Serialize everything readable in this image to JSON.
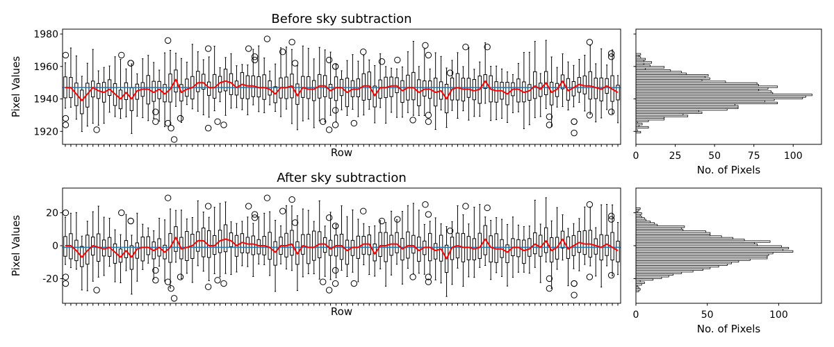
{
  "chart_data": [
    {
      "type": "box",
      "title": "Before sky subtraction",
      "xlabel": "Row",
      "ylabel": "Pixel Values",
      "ylim": [
        1912,
        1983
      ],
      "yticks": [
        1920,
        1940,
        1960,
        1980
      ],
      "n_rows": 101,
      "colors": {
        "box": "#000000",
        "median": "#1f77b4",
        "trend": "#ff0000",
        "reference": "#1f77b4"
      },
      "reference_line": 1947,
      "trend": [
        1947,
        1947,
        1943,
        1939,
        1943,
        1947,
        1945,
        1944,
        1946,
        1943,
        1940,
        1944,
        1940,
        1945,
        1946,
        1946,
        1944,
        1946,
        1943,
        1946,
        1952,
        1944,
        1946,
        1947,
        1950,
        1950,
        1947,
        1947,
        1950,
        1951,
        1950,
        1947,
        1949,
        1948,
        1948,
        1947,
        1947,
        1946,
        1943,
        1947,
        1947,
        1948,
        1942,
        1947,
        1946,
        1946,
        1948,
        1948,
        1945,
        1947,
        1947,
        1944,
        1946,
        1946,
        1948,
        1948,
        1942,
        1947,
        1947,
        1948,
        1948,
        1945,
        1947,
        1947,
        1944,
        1946,
        1946,
        1944,
        1945,
        1940,
        1946,
        1947,
        1946,
        1946,
        1945,
        1946,
        1951,
        1946,
        1945,
        1945,
        1943,
        1946,
        1946,
        1944,
        1945,
        1948,
        1946,
        1950,
        1944,
        1946,
        1951,
        1945,
        1947,
        1949,
        1948,
        1948,
        1947,
        1946,
        1948,
        1946,
        1944
      ],
      "outliers": [
        {
          "row": 1,
          "values": [
            1967,
            1928,
            1924
          ]
        },
        {
          "row": 11,
          "values": [
            1921
          ]
        },
        {
          "row": 19,
          "values": [
            1967
          ]
        },
        {
          "row": 22,
          "values": [
            1962,
            1962
          ]
        },
        {
          "row": 30,
          "values": [
            1932,
            1926
          ]
        },
        {
          "row": 34,
          "values": [
            1976,
            1925
          ]
        },
        {
          "row": 35,
          "values": [
            1922
          ]
        },
        {
          "row": 36,
          "values": [
            1915
          ]
        },
        {
          "row": 38,
          "values": [
            1928
          ]
        },
        {
          "row": 47,
          "values": [
            1971,
            1922
          ]
        },
        {
          "row": 50,
          "values": [
            1926
          ]
        },
        {
          "row": 52,
          "values": [
            1924
          ]
        },
        {
          "row": 60,
          "values": [
            1971
          ]
        },
        {
          "row": 62,
          "values": [
            1966,
            1964
          ]
        },
        {
          "row": 66,
          "values": [
            1977
          ]
        },
        {
          "row": 71,
          "values": [
            1969
          ]
        },
        {
          "row": 74,
          "values": [
            1975
          ]
        },
        {
          "row": 75,
          "values": [
            1962
          ]
        },
        {
          "row": 84,
          "values": [
            1926
          ]
        },
        {
          "row": 86,
          "values": [
            1964,
            1921
          ]
        },
        {
          "row": 88,
          "values": [
            1960,
            1960,
            1933,
            1924
          ]
        },
        {
          "row": 94,
          "values": [
            1925
          ]
        },
        {
          "row": 97,
          "values": [
            1969
          ]
        },
        {
          "row": 103,
          "values": [
            1963
          ]
        },
        {
          "row": 108,
          "values": [
            1964
          ]
        },
        {
          "row": 113,
          "values": [
            1927
          ]
        },
        {
          "row": 117,
          "values": [
            1973
          ]
        },
        {
          "row": 118,
          "values": [
            1967,
            1930,
            1926
          ]
        },
        {
          "row": 125,
          "values": [
            1956
          ]
        },
        {
          "row": 130,
          "values": [
            1972
          ]
        },
        {
          "row": 137,
          "values": [
            1972
          ]
        },
        {
          "row": 157,
          "values": [
            1929,
            1924
          ]
        },
        {
          "row": 165,
          "values": [
            1926,
            1926,
            1919
          ]
        },
        {
          "row": 170,
          "values": [
            1975,
            1930
          ]
        },
        {
          "row": 177,
          "values": [
            1968,
            1966,
            1932
          ]
        }
      ],
      "histogram": {
        "xlabel": "No. of Pixels",
        "xlim": [
          0,
          118
        ],
        "xticks": [
          0,
          25,
          50,
          75,
          100
        ],
        "bins_start": 1919,
        "bin_width": 1,
        "counts": [
          3,
          1,
          0,
          8,
          2,
          4,
          1,
          8,
          18,
          18,
          33,
          30,
          42,
          40,
          58,
          65,
          65,
          63,
          90,
          82,
          88,
          106,
          108,
          112,
          87,
          86,
          78,
          84,
          90,
          78,
          77,
          57,
          42,
          47,
          44,
          46,
          32,
          29,
          22,
          6,
          18,
          9,
          5,
          10,
          5,
          6,
          3,
          2,
          3
        ]
      }
    },
    {
      "type": "box",
      "title": "After sky subtraction",
      "xlabel": "Row",
      "ylabel": "Pixel Values",
      "ylim": [
        -35,
        35
      ],
      "yticks": [
        -20,
        0,
        20
      ],
      "n_rows": 101,
      "colors": {
        "box": "#000000",
        "median": "#1f77b4",
        "trend": "#ff0000",
        "reference": "#1f77b4"
      },
      "reference_line": -1,
      "trend": [
        0,
        0,
        -3,
        -7,
        -3,
        0,
        -1,
        -2,
        -1,
        -4,
        -7,
        -3,
        -7,
        -2,
        -1,
        -1,
        -3,
        -1,
        -4,
        -1,
        5,
        -2,
        -1,
        0,
        3,
        3,
        0,
        0,
        3,
        4,
        3,
        0,
        2,
        1,
        1,
        0,
        0,
        -1,
        -4,
        0,
        0,
        1,
        -5,
        0,
        -1,
        -1,
        1,
        1,
        -2,
        0,
        0,
        -3,
        -1,
        -1,
        1,
        1,
        -5,
        0,
        0,
        1,
        1,
        -2,
        0,
        0,
        -3,
        -1,
        -1,
        -3,
        -2,
        -8,
        -1,
        0,
        -1,
        -1,
        -2,
        -1,
        4,
        -1,
        -2,
        -2,
        -4,
        -1,
        -1,
        -3,
        -2,
        1,
        -1,
        3,
        -3,
        -1,
        4,
        -2,
        0,
        2,
        1,
        1,
        0,
        -1,
        1,
        -1,
        -3
      ],
      "outliers": [
        {
          "row": 1,
          "values": [
            20,
            -19,
            -23
          ]
        },
        {
          "row": 11,
          "values": [
            -27
          ]
        },
        {
          "row": 19,
          "values": [
            20
          ]
        },
        {
          "row": 22,
          "values": [
            15,
            15
          ]
        },
        {
          "row": 30,
          "values": [
            -15,
            -21
          ]
        },
        {
          "row": 34,
          "values": [
            29,
            -22
          ]
        },
        {
          "row": 35,
          "values": [
            -26
          ]
        },
        {
          "row": 36,
          "values": [
            -32
          ]
        },
        {
          "row": 38,
          "values": [
            -19
          ]
        },
        {
          "row": 47,
          "values": [
            24,
            -25
          ]
        },
        {
          "row": 50,
          "values": [
            -21
          ]
        },
        {
          "row": 52,
          "values": [
            -23
          ]
        },
        {
          "row": 60,
          "values": [
            24
          ]
        },
        {
          "row": 62,
          "values": [
            19,
            17
          ]
        },
        {
          "row": 66,
          "values": [
            29
          ]
        },
        {
          "row": 71,
          "values": [
            21
          ]
        },
        {
          "row": 74,
          "values": [
            28
          ]
        },
        {
          "row": 75,
          "values": [
            14
          ]
        },
        {
          "row": 84,
          "values": [
            -22
          ]
        },
        {
          "row": 86,
          "values": [
            17,
            -27
          ]
        },
        {
          "row": 88,
          "values": [
            12,
            12,
            -15,
            -23
          ]
        },
        {
          "row": 94,
          "values": [
            -23
          ]
        },
        {
          "row": 97,
          "values": [
            21
          ]
        },
        {
          "row": 103,
          "values": [
            15
          ]
        },
        {
          "row": 108,
          "values": [
            16
          ]
        },
        {
          "row": 113,
          "values": [
            -19
          ]
        },
        {
          "row": 117,
          "values": [
            25
          ]
        },
        {
          "row": 118,
          "values": [
            19,
            -19,
            -22
          ]
        },
        {
          "row": 125,
          "values": [
            9
          ]
        },
        {
          "row": 130,
          "values": [
            24
          ]
        },
        {
          "row": 137,
          "values": [
            23
          ]
        },
        {
          "row": 157,
          "values": [
            -20,
            -26
          ]
        },
        {
          "row": 165,
          "values": [
            -23,
            -23,
            -30
          ]
        },
        {
          "row": 170,
          "values": [
            25,
            -19
          ]
        },
        {
          "row": 177,
          "values": [
            18,
            16,
            -18
          ]
        }
      ],
      "histogram": {
        "xlabel": "No. of Pixels",
        "xlim": [
          0,
          130
        ],
        "xticks": [
          0,
          50,
          100
        ],
        "bins_start": -28,
        "bin_width": 1,
        "counts": [
          2,
          3,
          2,
          1,
          4,
          6,
          3,
          12,
          18,
          23,
          26,
          32,
          40,
          47,
          52,
          58,
          64,
          67,
          72,
          80,
          92,
          92,
          93,
          96,
          110,
          103,
          107,
          102,
          85,
          83,
          94,
          76,
          68,
          60,
          52,
          52,
          49,
          33,
          32,
          34,
          15,
          13,
          10,
          7,
          6,
          4,
          3,
          4,
          1,
          2,
          3
        ]
      }
    }
  ]
}
